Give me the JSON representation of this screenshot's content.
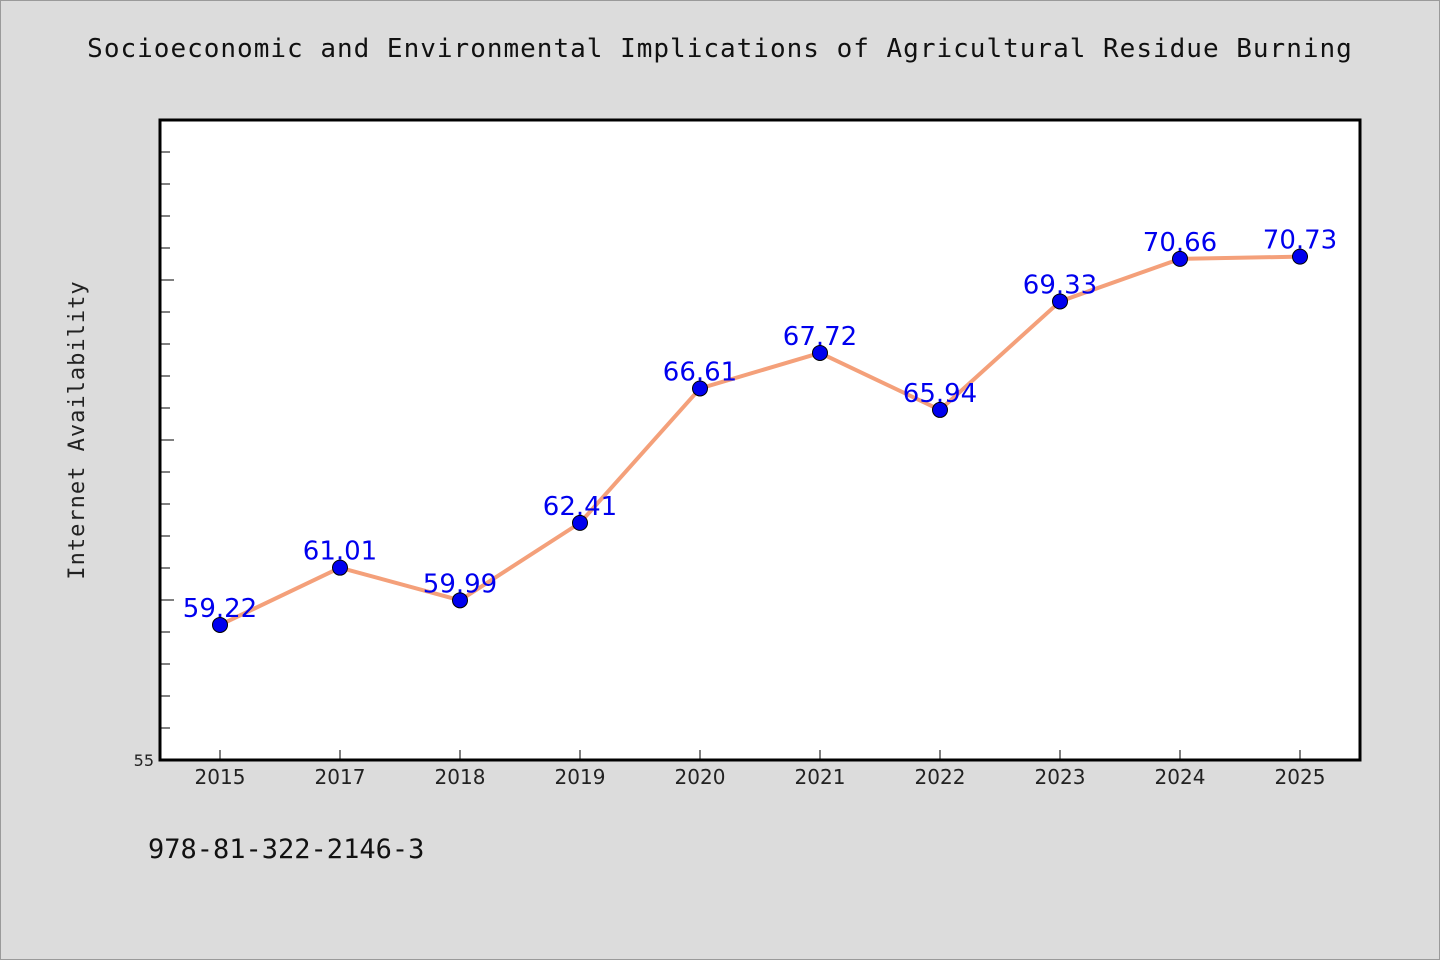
{
  "chart_data": {
    "type": "line",
    "title": "Socioeconomic and Environmental Implications of Agricultural Residue Burning",
    "xlabel": "",
    "ylabel": "Internet Availability",
    "categories": [
      "2015",
      "2017",
      "2018",
      "2019",
      "2020",
      "2021",
      "2022",
      "2023",
      "2024",
      "2025"
    ],
    "series": [
      {
        "values": [
          59.22,
          61.01,
          59.99,
          62.41,
          66.61,
          67.72,
          65.94,
          69.33,
          70.66,
          70.73
        ]
      }
    ],
    "data_labels": [
      "59.22",
      "61.01",
      "59.99",
      "62.41",
      "66.61",
      "67.72",
      "65.94",
      "69.33",
      "70.66",
      "70.73"
    ],
    "ylim": [
      55,
      75
    ],
    "y_tick_labels": [
      "55"
    ],
    "grid": false,
    "legend": "none",
    "colors": {
      "line": "#f4a07a",
      "marker": "#0000ee",
      "label": "#0000ee",
      "background": "#dcdcdc",
      "plot_background": "#ffffff"
    }
  },
  "footer": {
    "isbn": "978-81-322-2146-3"
  }
}
